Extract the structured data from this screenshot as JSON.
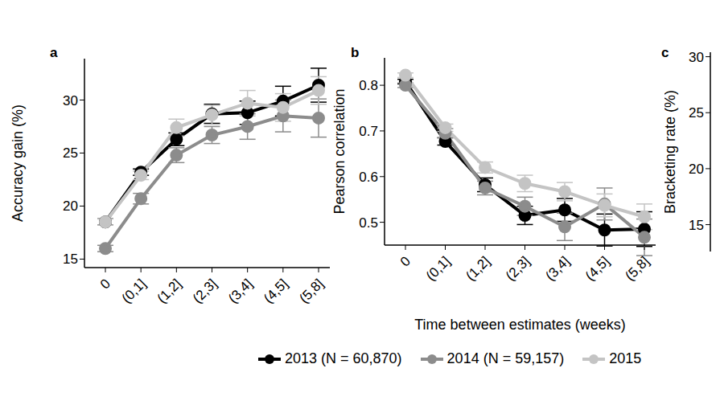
{
  "chart_data": [
    {
      "type": "line",
      "title": "a",
      "y_label": "Accuracy gain (%)",
      "categories": [
        "0",
        "(0,1]",
        "(1,2]",
        "(2,3]",
        "(3,4]",
        "(4,5]",
        "(5,8]"
      ],
      "ylim": [
        14.2,
        33.9
      ],
      "yticks": [
        15,
        20,
        25,
        30
      ],
      "marker": "circle",
      "series": [
        {
          "name": "2013 (N = 60,870)",
          "color": "#000000",
          "values": [
            18.5,
            23.2,
            26.3,
            28.7,
            28.8,
            29.9,
            31.4
          ],
          "errors": [
            0.3,
            0.3,
            0.6,
            0.9,
            1.1,
            1.4,
            1.6
          ]
        },
        {
          "name": "2014 (N = 59,157)",
          "color": "#8c8c8c",
          "values": [
            16.0,
            20.7,
            24.8,
            26.7,
            27.5,
            28.5,
            28.3
          ],
          "errors": [
            0.3,
            0.5,
            0.7,
            0.8,
            1.2,
            1.5,
            1.8
          ]
        },
        {
          "name": "2015",
          "color": "#c4c4c4",
          "values": [
            18.5,
            22.9,
            27.4,
            28.6,
            29.7,
            29.3,
            30.9
          ],
          "errors": [
            0.3,
            0.4,
            0.8,
            0.9,
            1.2,
            1.3,
            1.3
          ]
        }
      ]
    },
    {
      "type": "line",
      "title": "b",
      "y_label": "Pearson correlation",
      "x_label": "Time between estimates (weeks)",
      "categories": [
        "0",
        "(0,1]",
        "(1,2]",
        "(2,3]",
        "(3,4]",
        "(4,5]",
        "(5,8]"
      ],
      "ylim": [
        0.45,
        0.86
      ],
      "yticks": [
        0.5,
        0.6,
        0.7,
        0.8
      ],
      "marker": "circle",
      "series": [
        {
          "name": "2013 (N = 60,870)",
          "color": "#000000",
          "values": [
            0.808,
            0.677,
            0.582,
            0.515,
            0.527,
            0.483,
            0.485
          ],
          "errors": [
            0.005,
            0.008,
            0.015,
            0.02,
            0.025,
            0.035,
            0.038
          ]
        },
        {
          "name": "2014 (N = 59,157)",
          "color": "#8c8c8c",
          "values": [
            0.8,
            0.695,
            0.575,
            0.535,
            0.49,
            0.54,
            0.467
          ],
          "errors": [
            0.005,
            0.01,
            0.015,
            0.02,
            0.03,
            0.035,
            0.04
          ]
        },
        {
          "name": "2015",
          "color": "#c4c4c4",
          "values": [
            0.822,
            0.707,
            0.62,
            0.585,
            0.567,
            0.537,
            0.512
          ],
          "errors": [
            0.005,
            0.008,
            0.012,
            0.018,
            0.02,
            0.025,
            0.028
          ]
        }
      ]
    },
    {
      "type": "line",
      "title": "c",
      "y_label": "Bracketing rate (%)",
      "ylim": [
        12.6,
        30.4
      ],
      "yticks": [
        15,
        20,
        25,
        30
      ],
      "tick_labels": "y",
      "series": []
    }
  ]
}
